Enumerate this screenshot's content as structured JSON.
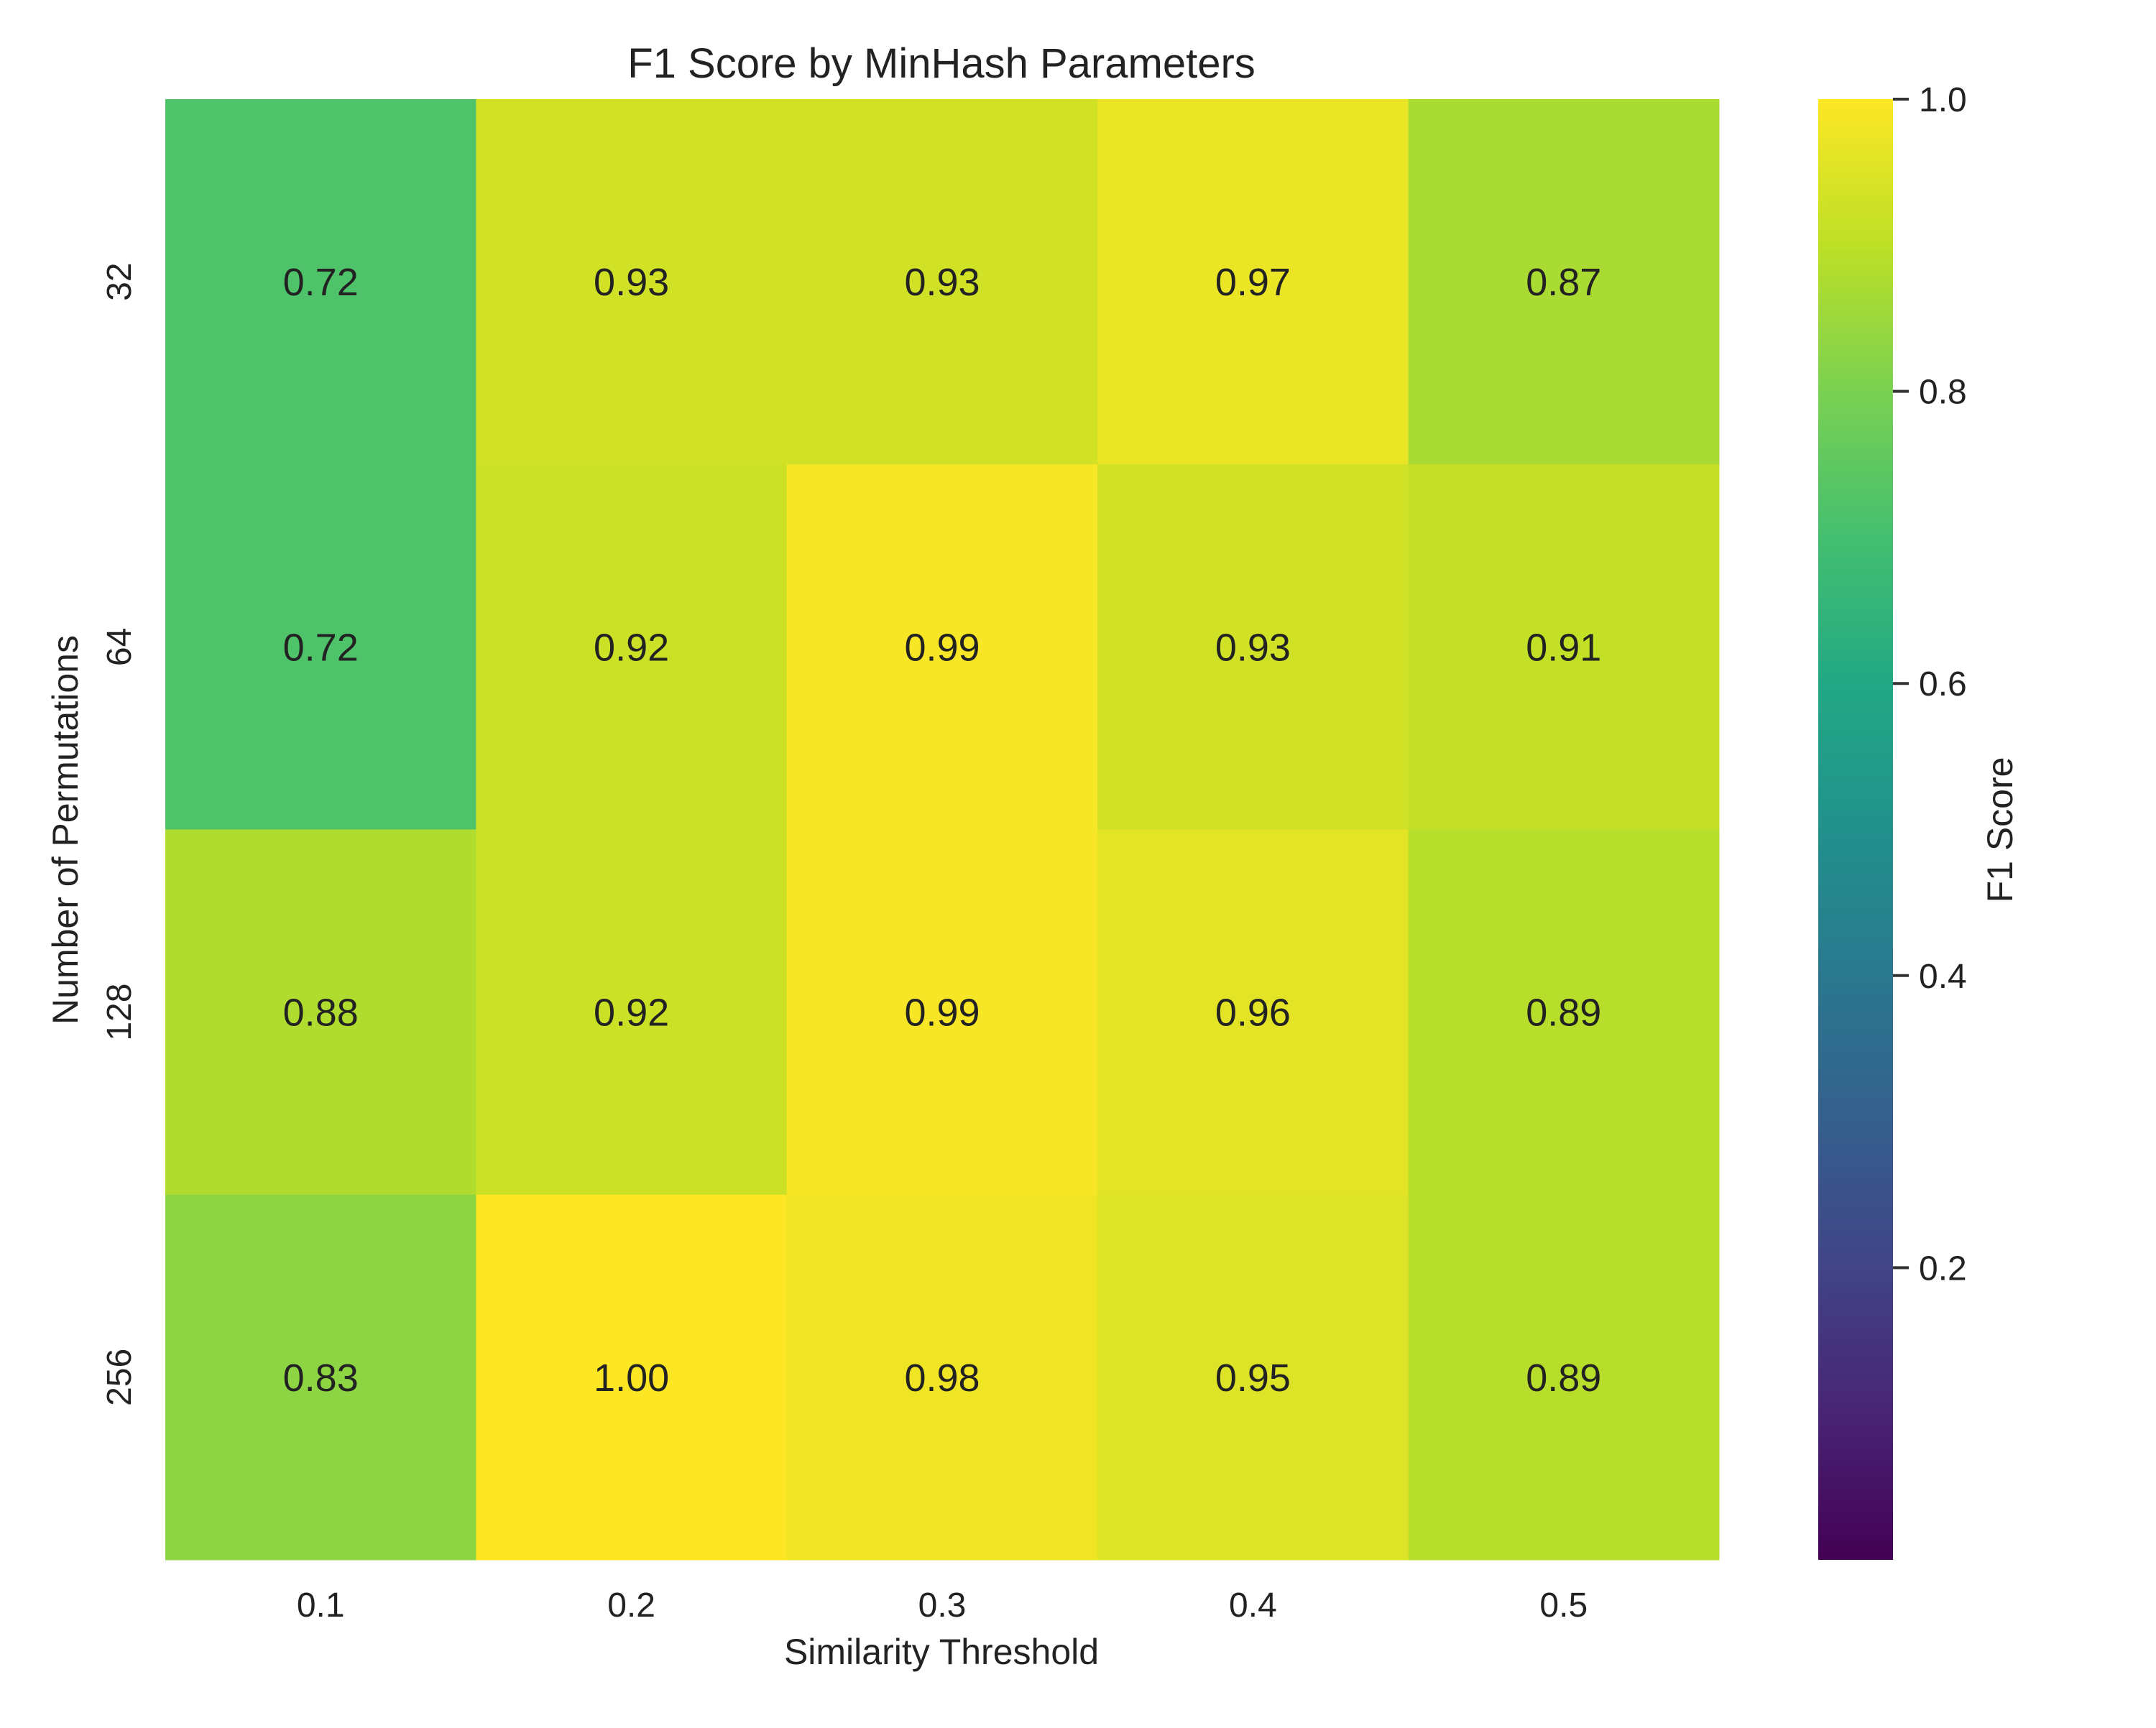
{
  "chart_data": {
    "type": "heatmap",
    "title": "F1 Score by MinHash Parameters",
    "xlabel": "Similarity Threshold",
    "ylabel": "Number of Permutations",
    "x_categories": [
      "0.1",
      "0.2",
      "0.3",
      "0.4",
      "0.5"
    ],
    "y_categories": [
      "32",
      "64",
      "128",
      "256"
    ],
    "values": [
      [
        0.72,
        0.93,
        0.93,
        0.97,
        0.87
      ],
      [
        0.72,
        0.92,
        0.99,
        0.93,
        0.91
      ],
      [
        0.88,
        0.92,
        0.99,
        0.96,
        0.89
      ],
      [
        0.83,
        1.0,
        0.98,
        0.95,
        0.89
      ]
    ],
    "cell_labels": [
      [
        "0.72",
        "0.93",
        "0.93",
        "0.97",
        "0.87"
      ],
      [
        "0.72",
        "0.92",
        "0.99",
        "0.93",
        "0.91"
      ],
      [
        "0.88",
        "0.92",
        "0.99",
        "0.96",
        "0.89"
      ],
      [
        "0.83",
        "1.00",
        "0.98",
        "0.95",
        "0.89"
      ]
    ],
    "colormap": "viridis",
    "colorbar": {
      "label": "F1 Score",
      "range": [
        0.0,
        1.0
      ],
      "ticks": [
        0.2,
        0.4,
        0.6,
        0.8,
        1.0
      ],
      "tick_labels": [
        "0.2",
        "0.4",
        "0.6",
        "0.8",
        "1.0"
      ],
      "placement": "right"
    }
  }
}
